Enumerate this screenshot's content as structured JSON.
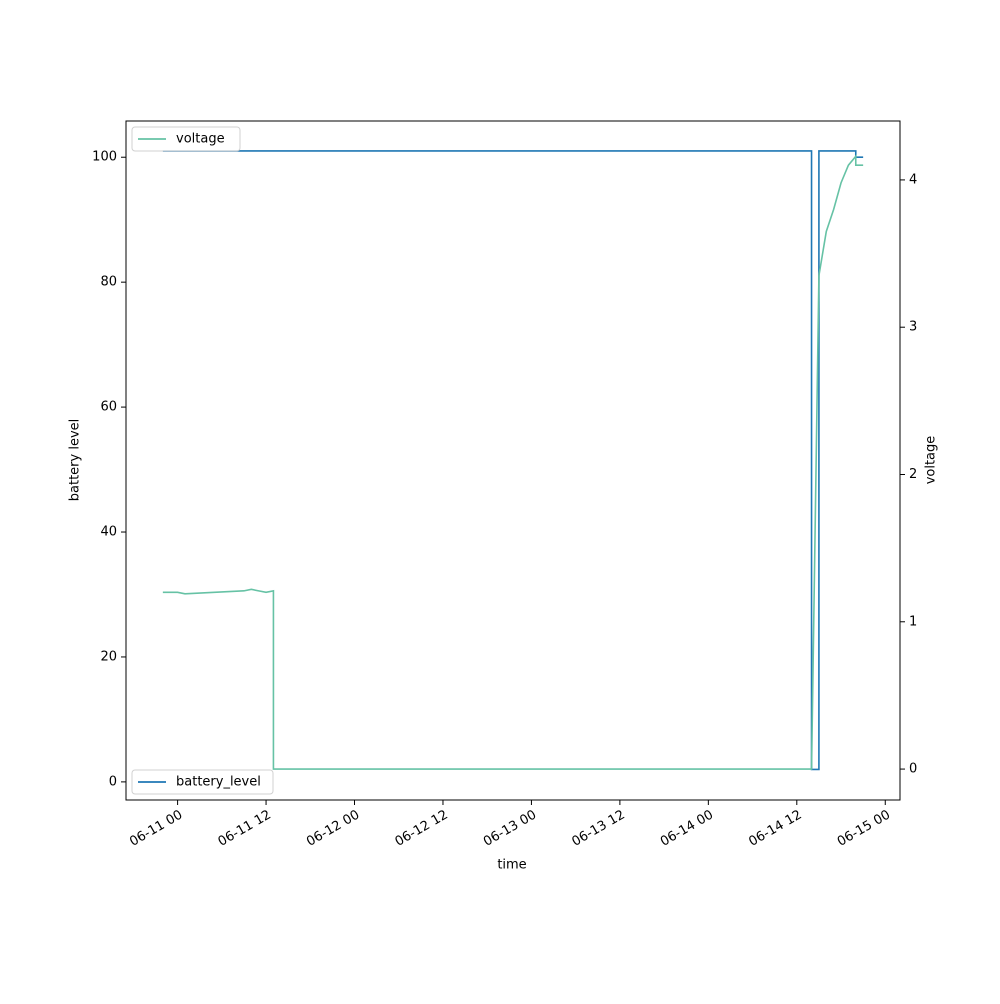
{
  "chart_data": {
    "type": "line",
    "x_label": "time",
    "y_label": "battery level",
    "y2_label": "voltage",
    "x": [
      "06-10 22",
      "06-11 00",
      "06-11 01",
      "06-11 09",
      "06-11 10",
      "06-11 11",
      "06-11 12",
      "06-11 13",
      "06-11 13",
      "06-14 14",
      "06-14 14",
      "06-14 15",
      "06-14 15",
      "06-14 16",
      "06-14 17",
      "06-14 18",
      "06-14 19",
      "06-14 20",
      "06-14 20",
      "06-14 21"
    ],
    "series": [
      {
        "name": "battery_level",
        "color": "#1f77b4",
        "axis": "y",
        "values": [
          101,
          101,
          101,
          101,
          101,
          101,
          101,
          101,
          101,
          101,
          2,
          2,
          101,
          101,
          101,
          101,
          101,
          101,
          100,
          100
        ]
      },
      {
        "name": "voltage",
        "color": "#66c2a5",
        "axis": "y2",
        "values": [
          1.2,
          1.2,
          1.19,
          1.21,
          1.22,
          1.21,
          1.2,
          1.21,
          0,
          0,
          0,
          3.35,
          3.35,
          3.65,
          3.8,
          3.98,
          4.1,
          4.16,
          4.1,
          4.1
        ]
      }
    ],
    "xlim": [
      "06-10 17",
      "06-15 02"
    ],
    "xticks": [
      "06-11 00",
      "06-11 12",
      "06-12 00",
      "06-12 12",
      "06-13 00",
      "06-13 12",
      "06-14 00",
      "06-14 12",
      "06-15 00"
    ],
    "ylim": [
      -2.9,
      105.8
    ],
    "yticks": [
      0,
      20,
      40,
      60,
      80,
      100
    ],
    "y2lim": [
      -0.21,
      4.4
    ],
    "y2ticks": [
      0,
      1,
      2,
      3,
      4
    ],
    "legend_loc": "lower left",
    "legend2_loc": "upper left",
    "grid": false
  }
}
